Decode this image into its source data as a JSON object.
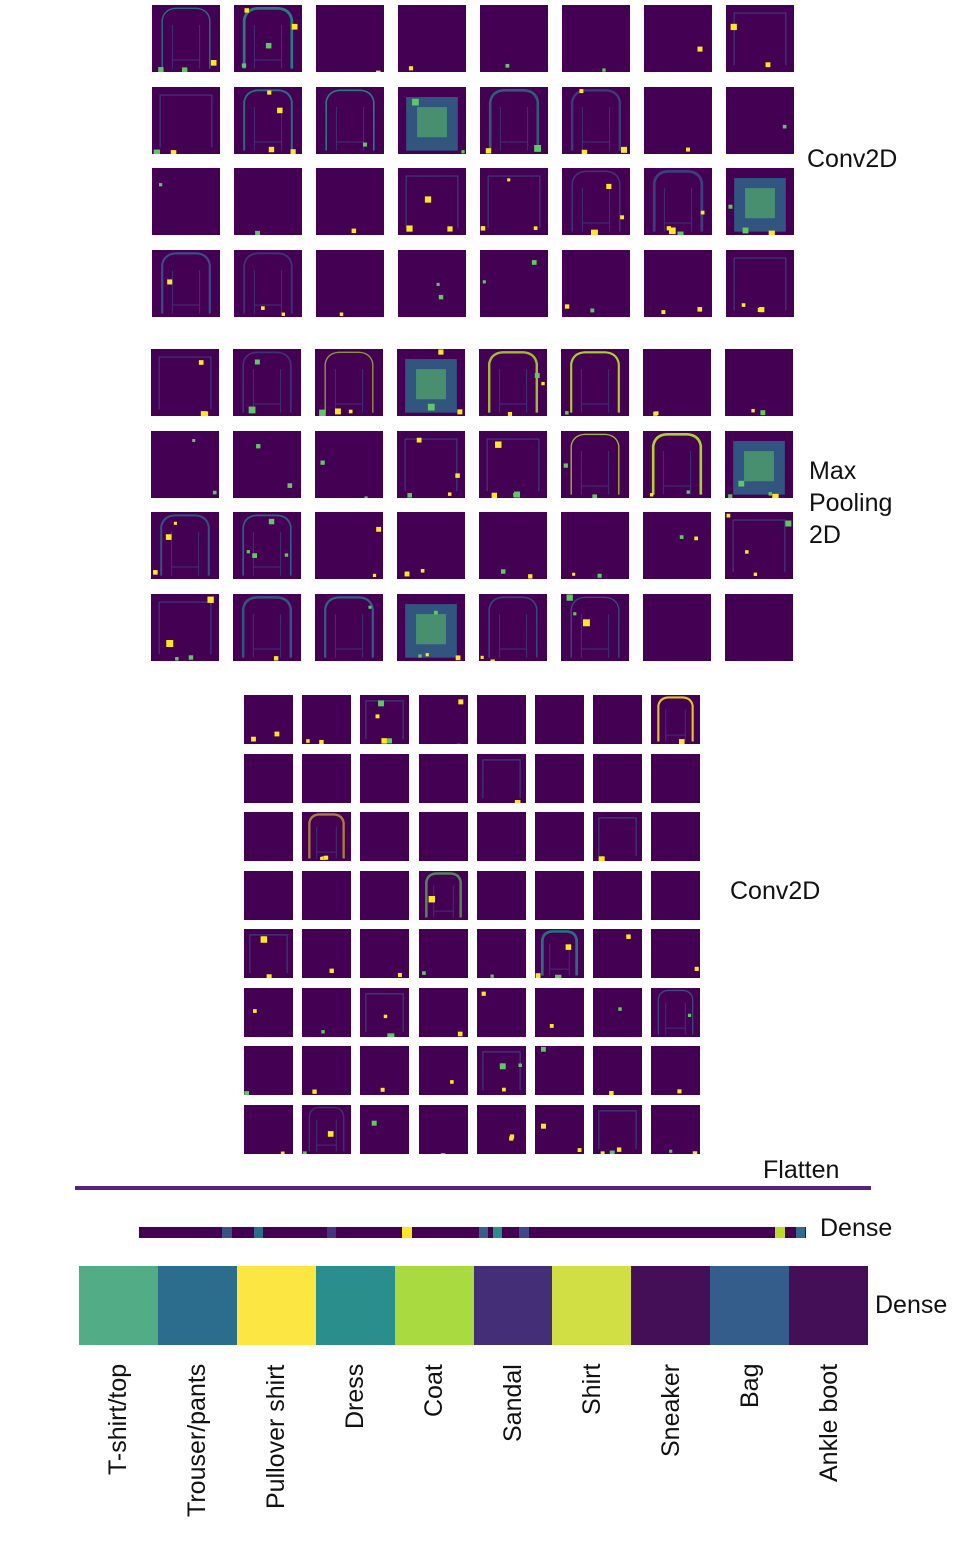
{
  "layer_labels": {
    "conv1": "Conv2D",
    "pool1": "Max\nPooling\n2D",
    "conv2": "Conv2D",
    "flatten": "Flatten",
    "dense1": "Dense",
    "dense2": "Dense"
  },
  "classes": [
    "T-shirt/top",
    "Trouser/pants",
    "Pullover shirt",
    "Dress",
    "Coat",
    "Sandal",
    "Shirt",
    "Sneaker",
    "Bag",
    "Ankle boot"
  ],
  "output_activation_colors": [
    "#52ac86",
    "#2c6c8c",
    "#fce641",
    "#2a8e8c",
    "#a9da40",
    "#452e78",
    "#d1df45",
    "#440f56",
    "#355d8c",
    "#440f56"
  ],
  "dense1_highlight_colors": [
    "#3b5289",
    "#2e6c8e",
    "#46337e",
    "#fde725",
    "#34608d",
    "#2a8e8c",
    "#3f4889",
    "#bade28",
    "#2f6b8e"
  ],
  "colormap": "viridis",
  "colors": {
    "background_activation": "#440154",
    "flatten_line": "#58237a"
  },
  "icons": []
}
